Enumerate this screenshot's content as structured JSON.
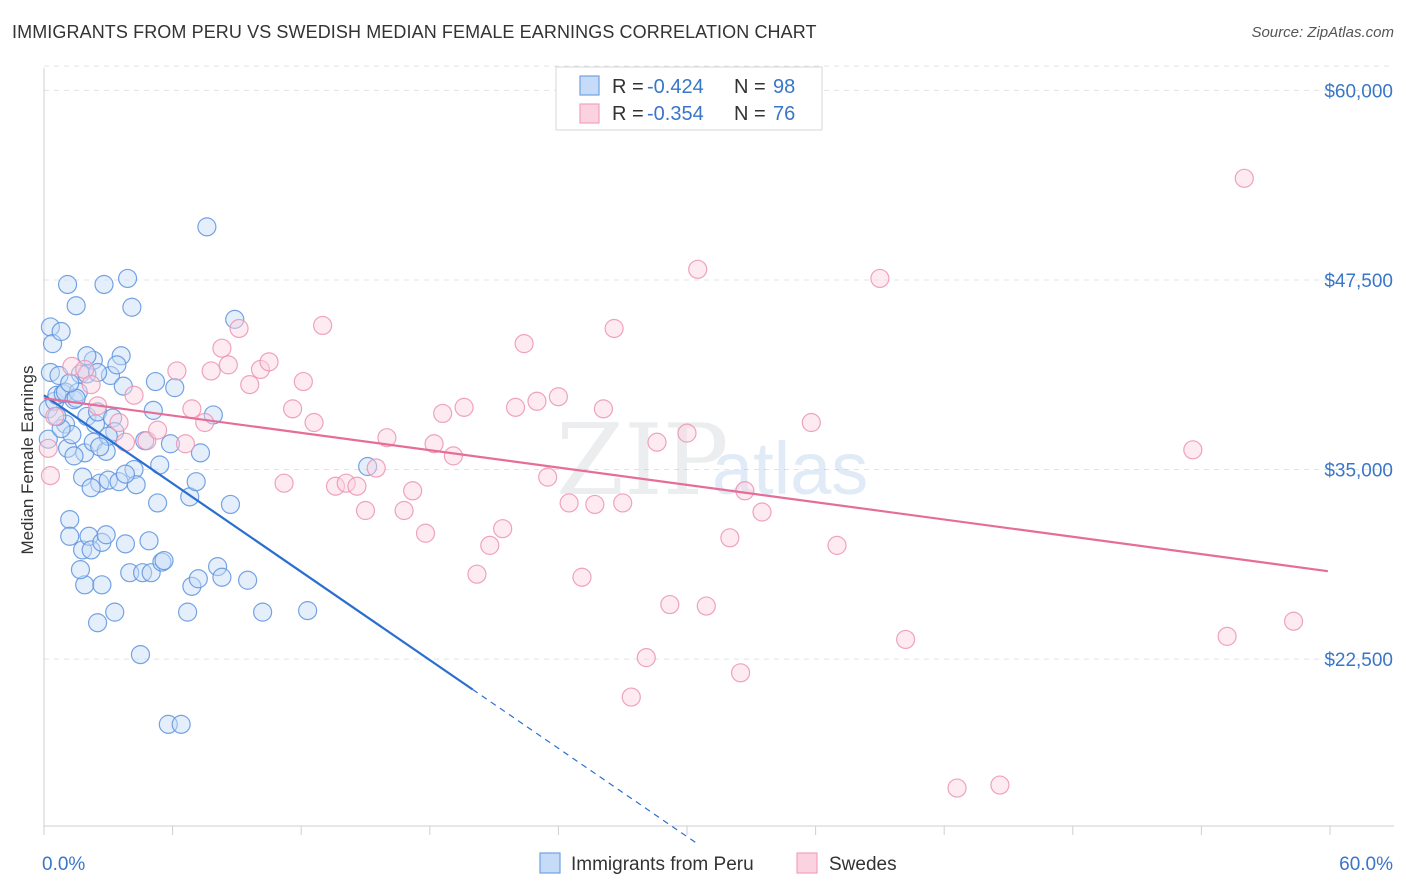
{
  "title": "IMMIGRANTS FROM PERU VS SWEDISH MEDIAN FEMALE EARNINGS CORRELATION CHART",
  "source": "Source: ZipAtlas.com",
  "chart_data": {
    "type": "scatter",
    "title": "IMMIGRANTS FROM PERU VS SWEDISH MEDIAN FEMALE EARNINGS CORRELATION CHART",
    "xlabel": "",
    "ylabel": "Median Female Earnings",
    "xlim": [
      0,
      60
    ],
    "ylim": [
      11500,
      62000
    ],
    "x_tick_labels": [
      {
        "value": 0,
        "label": "0.0%"
      },
      {
        "value": 60,
        "label": "60.0%"
      }
    ],
    "y_tick_labels": [
      {
        "value": 60000,
        "label": "$60,000"
      },
      {
        "value": 47500,
        "label": "$47,500"
      },
      {
        "value": 35000,
        "label": "$35,000"
      },
      {
        "value": 22500,
        "label": "$22,500"
      }
    ],
    "grid": true,
    "legend_position": "top-center",
    "watermark": {
      "zip": "ZIP",
      "atlas": "atlas"
    },
    "stats_legend": [
      {
        "r_label": "R = ",
        "r": "-0.424",
        "n_label": "N = ",
        "n": "98"
      },
      {
        "r_label": "R = ",
        "r": "-0.354",
        "n_label": "N = ",
        "n": "76"
      }
    ],
    "series": [
      {
        "name": "Immigrants from Peru",
        "color": "#6fa0e6",
        "trend_color": "#2a6fd0",
        "trend": {
          "x0": 0.0,
          "y0": 39900,
          "x1": 20.0,
          "y1": 20500,
          "dash_x1": 30.5
        },
        "points": [
          [
            0.2,
            37000
          ],
          [
            0.2,
            39000
          ],
          [
            0.3,
            41400
          ],
          [
            0.3,
            44400
          ],
          [
            0.4,
            43300
          ],
          [
            0.5,
            39500
          ],
          [
            0.6,
            39900
          ],
          [
            0.7,
            41200
          ],
          [
            0.8,
            44100
          ],
          [
            0.9,
            40000
          ],
          [
            1.0,
            38000
          ],
          [
            1.0,
            40100
          ],
          [
            1.1,
            47200
          ],
          [
            1.1,
            36400
          ],
          [
            1.2,
            31700
          ],
          [
            1.2,
            30600
          ],
          [
            1.3,
            37300
          ],
          [
            1.4,
            39600
          ],
          [
            1.5,
            45800
          ],
          [
            1.6,
            40100
          ],
          [
            1.7,
            41300
          ],
          [
            1.8,
            29700
          ],
          [
            1.9,
            27400
          ],
          [
            1.8,
            34500
          ],
          [
            1.9,
            36100
          ],
          [
            2.0,
            38500
          ],
          [
            2.0,
            41300
          ],
          [
            2.1,
            30600
          ],
          [
            2.2,
            29700
          ],
          [
            2.3,
            42200
          ],
          [
            2.3,
            36800
          ],
          [
            2.4,
            38000
          ],
          [
            2.5,
            38800
          ],
          [
            2.5,
            24900
          ],
          [
            2.6,
            34100
          ],
          [
            2.7,
            27400
          ],
          [
            2.7,
            30200
          ],
          [
            2.8,
            47200
          ],
          [
            2.9,
            36200
          ],
          [
            3.0,
            34300
          ],
          [
            3.1,
            41200
          ],
          [
            3.2,
            38400
          ],
          [
            3.3,
            37500
          ],
          [
            3.3,
            25600
          ],
          [
            3.5,
            34200
          ],
          [
            3.6,
            42500
          ],
          [
            3.7,
            40500
          ],
          [
            3.8,
            30100
          ],
          [
            3.9,
            47600
          ],
          [
            4.0,
            28200
          ],
          [
            4.1,
            45700
          ],
          [
            4.2,
            35000
          ],
          [
            4.3,
            34000
          ],
          [
            4.5,
            22800
          ],
          [
            4.6,
            28200
          ],
          [
            4.9,
            30300
          ],
          [
            5.0,
            28200
          ],
          [
            5.2,
            40800
          ],
          [
            5.3,
            32800
          ],
          [
            5.4,
            35300
          ],
          [
            5.5,
            28900
          ],
          [
            5.6,
            29000
          ],
          [
            5.8,
            18200
          ],
          [
            5.9,
            36700
          ],
          [
            6.1,
            40400
          ],
          [
            6.4,
            18200
          ],
          [
            6.7,
            25600
          ],
          [
            6.8,
            33200
          ],
          [
            6.9,
            27300
          ],
          [
            7.1,
            34200
          ],
          [
            7.2,
            27800
          ],
          [
            7.3,
            36100
          ],
          [
            7.6,
            51000
          ],
          [
            7.9,
            38600
          ],
          [
            8.1,
            28600
          ],
          [
            8.3,
            27900
          ],
          [
            8.7,
            32700
          ],
          [
            8.9,
            44900
          ],
          [
            9.5,
            27700
          ],
          [
            10.2,
            25600
          ],
          [
            12.3,
            25700
          ],
          [
            15.1,
            35200
          ],
          [
            1.5,
            39700
          ],
          [
            2.0,
            42500
          ],
          [
            1.2,
            40700
          ],
          [
            2.5,
            41400
          ],
          [
            3.0,
            37200
          ],
          [
            1.4,
            35900
          ],
          [
            2.2,
            33800
          ],
          [
            0.8,
            37700
          ],
          [
            3.4,
            41900
          ],
          [
            0.6,
            38500
          ],
          [
            4.7,
            36900
          ],
          [
            1.7,
            28400
          ],
          [
            2.9,
            30700
          ],
          [
            3.8,
            34700
          ],
          [
            2.6,
            36500
          ],
          [
            5.1,
            38900
          ]
        ]
      },
      {
        "name": "Swedes",
        "color": "#f2a2bc",
        "trend_color": "#e56d97",
        "trend": {
          "x0": 0.0,
          "y0": 39700,
          "x1": 59.9,
          "y1": 28300
        },
        "points": [
          [
            0.3,
            34600
          ],
          [
            1.3,
            41800
          ],
          [
            1.9,
            41600
          ],
          [
            2.2,
            40600
          ],
          [
            2.5,
            39200
          ],
          [
            3.5,
            38100
          ],
          [
            3.8,
            36800
          ],
          [
            4.2,
            39900
          ],
          [
            4.8,
            36900
          ],
          [
            5.3,
            37600
          ],
          [
            6.2,
            41500
          ],
          [
            6.6,
            36700
          ],
          [
            6.9,
            39000
          ],
          [
            7.5,
            38100
          ],
          [
            7.8,
            41500
          ],
          [
            8.3,
            43000
          ],
          [
            8.6,
            41900
          ],
          [
            9.1,
            44300
          ],
          [
            9.6,
            40600
          ],
          [
            10.1,
            41600
          ],
          [
            10.5,
            42100
          ],
          [
            11.2,
            34100
          ],
          [
            11.6,
            39000
          ],
          [
            12.1,
            40800
          ],
          [
            12.6,
            38100
          ],
          [
            13.0,
            44500
          ],
          [
            13.6,
            33900
          ],
          [
            14.1,
            34100
          ],
          [
            14.6,
            33900
          ],
          [
            15.0,
            32300
          ],
          [
            15.5,
            35100
          ],
          [
            16.0,
            37100
          ],
          [
            16.8,
            32300
          ],
          [
            17.2,
            33600
          ],
          [
            17.8,
            30800
          ],
          [
            18.2,
            36700
          ],
          [
            18.6,
            38700
          ],
          [
            19.1,
            35900
          ],
          [
            19.6,
            39100
          ],
          [
            20.2,
            28100
          ],
          [
            20.8,
            30000
          ],
          [
            21.4,
            31100
          ],
          [
            22.0,
            39100
          ],
          [
            22.4,
            43300
          ],
          [
            23.0,
            39500
          ],
          [
            23.5,
            34500
          ],
          [
            24.0,
            39800
          ],
          [
            24.5,
            32800
          ],
          [
            25.1,
            27900
          ],
          [
            25.7,
            32700
          ],
          [
            26.1,
            39000
          ],
          [
            26.6,
            44300
          ],
          [
            27.0,
            32800
          ],
          [
            27.4,
            20000
          ],
          [
            28.1,
            22600
          ],
          [
            28.6,
            36800
          ],
          [
            29.2,
            26100
          ],
          [
            30.0,
            37400
          ],
          [
            30.5,
            48200
          ],
          [
            30.9,
            26000
          ],
          [
            32.0,
            30500
          ],
          [
            32.5,
            21600
          ],
          [
            32.7,
            33600
          ],
          [
            33.5,
            32200
          ],
          [
            35.8,
            38100
          ],
          [
            37.0,
            30000
          ],
          [
            39.0,
            47600
          ],
          [
            40.2,
            23800
          ],
          [
            42.6,
            14000
          ],
          [
            44.6,
            14200
          ],
          [
            53.6,
            36300
          ],
          [
            55.2,
            24000
          ],
          [
            56.0,
            54200
          ],
          [
            58.3,
            25000
          ],
          [
            0.2,
            36400
          ],
          [
            0.5,
            38500
          ]
        ]
      }
    ]
  },
  "legend": {
    "items": [
      {
        "label": "Immigrants from Peru",
        "color": "#6fa0e6"
      },
      {
        "label": "Swedes",
        "color": "#f2a2bc"
      }
    ]
  }
}
